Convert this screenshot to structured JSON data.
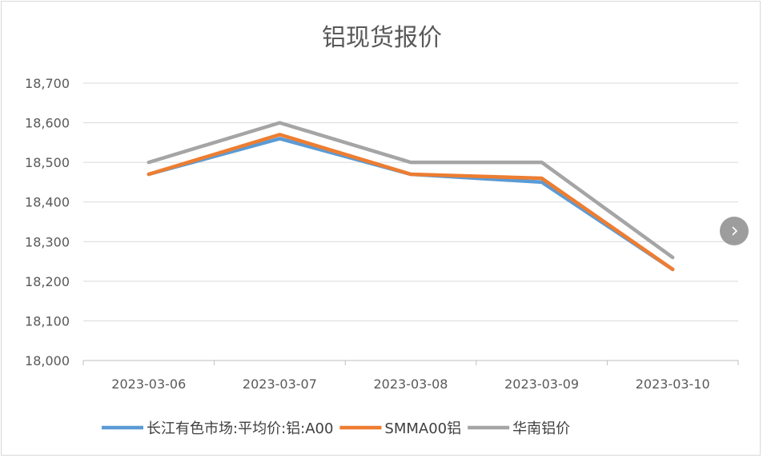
{
  "chart_data": {
    "type": "line",
    "title": "铝现货报价",
    "categories": [
      "2023-03-06",
      "2023-03-07",
      "2023-03-08",
      "2023-03-09",
      "2023-03-10"
    ],
    "series": [
      {
        "name": "长江有色市场:平均价:铝:A00",
        "values": [
          18470,
          18560,
          18470,
          18450,
          18230
        ],
        "color": "#5b9bd5"
      },
      {
        "name": "SMMA00铝",
        "values": [
          18470,
          18570,
          18470,
          18460,
          18230
        ],
        "color": "#ed7d31"
      },
      {
        "name": "华南铝价",
        "values": [
          18500,
          18600,
          18500,
          18500,
          18260
        ],
        "color": "#a5a5a5"
      }
    ],
    "ylim": [
      18000,
      18700
    ],
    "yticks": [
      18000,
      18100,
      18200,
      18300,
      18400,
      18500,
      18600,
      18700
    ],
    "ytick_labels": [
      "18,000",
      "18,100",
      "18,200",
      "18,300",
      "18,400",
      "18,500",
      "18,600",
      "18,700"
    ],
    "xlabel": "",
    "ylabel": "",
    "grid": true,
    "legend_position": "bottom"
  },
  "ui": {
    "next_icon": "chevron-right-icon"
  }
}
